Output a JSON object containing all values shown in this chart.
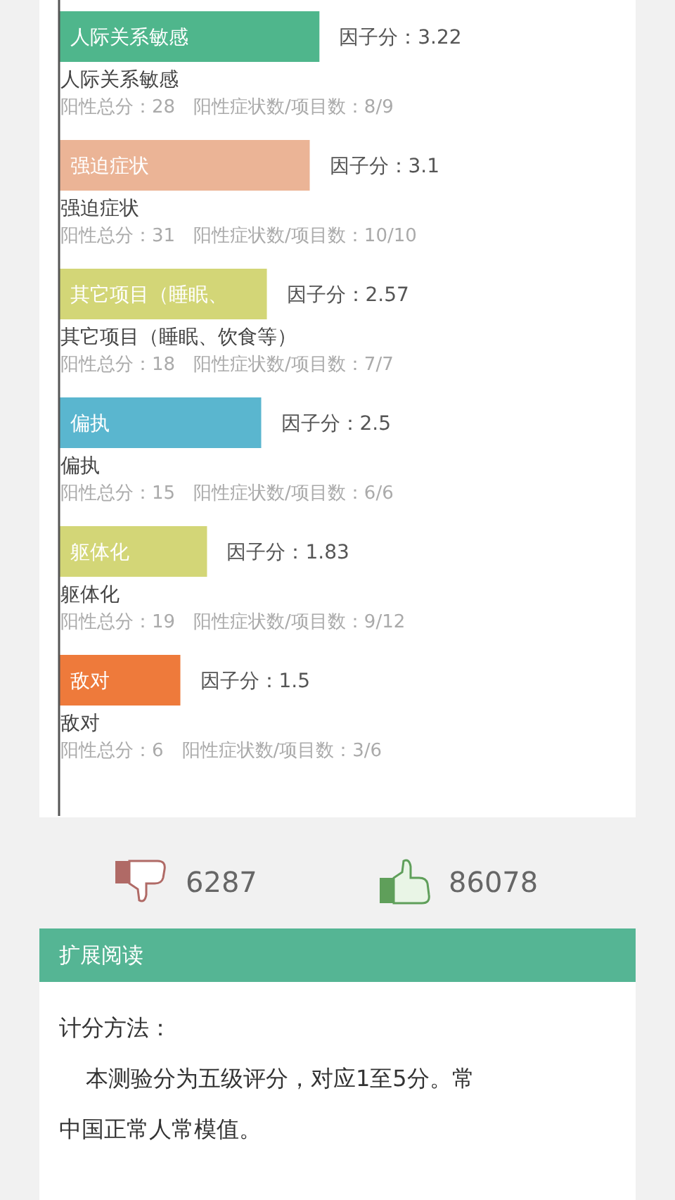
{
  "chart_data": {
    "type": "bar",
    "orientation": "horizontal",
    "categories": [
      "人际关系敏感",
      "强迫症状",
      "其它项目（睡眠、饮食等）",
      "偏执",
      "躯体化",
      "敌对"
    ],
    "values": [
      3.22,
      3.1,
      2.57,
      2.5,
      1.83,
      1.5
    ],
    "colors": [
      "#4fb68c",
      "#ebb496",
      "#d3d677",
      "#5ab6cf",
      "#d3d677",
      "#ee7a3b"
    ],
    "value_labels": [
      "因子分：3.22",
      "因子分：3.1",
      "因子分：2.57",
      "因子分：2.5",
      "因子分：1.83",
      "因子分：1.5"
    ],
    "tick_labels": false,
    "annotations": [
      "人际关系敏感",
      "阳性总分：28　阳性症状数/项目数：8/9",
      "强迫症状",
      "阳性总分：31　阳性症状数/项目数：10/10",
      "其它项目（睡眠、",
      "阳性总分：18　阳性症状数/项目数：7/7",
      "偏执",
      "阳性总分：15　阳性症状数/项目数：6/6",
      "躯体化",
      "阳性总分：19　阳性症状数/项目数：9/12",
      "敌对",
      "阳性总分：6　阳性症状数/项目数：3/6",
      "6287",
      "86078",
      "扩展阅读",
      "计分方法：",
      "本测验分为五级评分，对应1至5分。常",
      "中国正常人常模值。"
    ]
  }
}
